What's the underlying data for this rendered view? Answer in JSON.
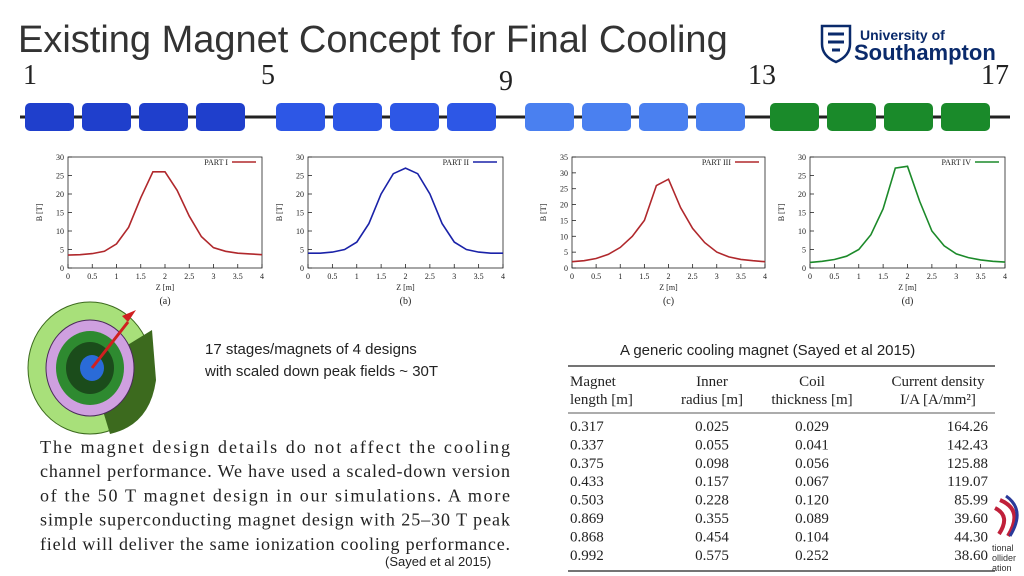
{
  "title": "Existing Magnet Concept for Final Cooling",
  "logo": {
    "line1": "University of",
    "line2": "Southampton"
  },
  "stage_numbers": [
    "1",
    "5",
    "9",
    "13",
    "17"
  ],
  "chart_data": [
    {
      "type": "line",
      "ylabel": "B [T]",
      "xlabel": "Z [m]",
      "caption": "(a)",
      "x": [
        0,
        0.25,
        0.5,
        0.75,
        1,
        1.25,
        1.5,
        1.75,
        2,
        2.25,
        2.5,
        2.75,
        3,
        3.25,
        3.5,
        3.75,
        4
      ],
      "series": [
        {
          "name": "PART I",
          "color": "#b0282c",
          "values": [
            3.5,
            3.6,
            3.9,
            4.5,
            6.5,
            11,
            19,
            26,
            26,
            21,
            14,
            8.5,
            5.5,
            4.5,
            4,
            3.8,
            3.6
          ]
        }
      ],
      "xlim": [
        0,
        4
      ],
      "ylim": [
        0,
        30
      ],
      "xticks": [
        0,
        0.5,
        1,
        1.5,
        2,
        2.5,
        3,
        3.5,
        4
      ],
      "yticks": [
        0,
        5,
        10,
        15,
        20,
        25,
        30
      ],
      "legend": "upper right"
    },
    {
      "type": "line",
      "ylabel": "B [T]",
      "xlabel": "Z [m]",
      "caption": "(b)",
      "x": [
        0,
        0.25,
        0.5,
        0.75,
        1,
        1.25,
        1.5,
        1.75,
        2,
        2.25,
        2.5,
        2.75,
        3,
        3.25,
        3.5,
        3.75,
        4
      ],
      "series": [
        {
          "name": "PART II",
          "color": "#1a22a8",
          "values": [
            4,
            4,
            4.3,
            5,
            7,
            12,
            20,
            25.5,
            27,
            25.5,
            20,
            12,
            7,
            5,
            4.3,
            4,
            4
          ]
        }
      ],
      "xlim": [
        0,
        4
      ],
      "ylim": [
        0,
        30
      ],
      "xticks": [
        0,
        0.5,
        1,
        1.5,
        2,
        2.5,
        3,
        3.5,
        4
      ],
      "yticks": [
        0,
        5,
        10,
        15,
        20,
        25,
        30
      ],
      "legend": "upper right"
    },
    {
      "type": "line",
      "ylabel": "B [T]",
      "xlabel": "Z [m]",
      "caption": "(c)",
      "x": [
        0,
        0.25,
        0.5,
        0.75,
        1,
        1.25,
        1.5,
        1.75,
        2,
        2.25,
        2.5,
        2.75,
        3,
        3.25,
        3.5,
        3.75,
        4
      ],
      "series": [
        {
          "name": "PART III",
          "color": "#b0282c",
          "values": [
            2,
            2.3,
            3,
            4.3,
            6.5,
            10,
            15,
            26,
            28,
            19,
            12.5,
            8,
            5,
            3.5,
            2.7,
            2.3,
            2
          ]
        }
      ],
      "xlim": [
        0,
        4
      ],
      "ylim": [
        0,
        35
      ],
      "xticks": [
        0,
        0.5,
        1,
        1.5,
        2,
        2.5,
        3,
        3.5,
        4
      ],
      "yticks": [
        0,
        5,
        10,
        15,
        20,
        25,
        30,
        35
      ],
      "legend": "upper right"
    },
    {
      "type": "line",
      "ylabel": "B [T]",
      "xlabel": "Z [m]",
      "caption": "(d)",
      "x": [
        0,
        0.25,
        0.5,
        0.75,
        1,
        1.25,
        1.5,
        1.75,
        2,
        2.25,
        2.5,
        2.75,
        3,
        3.25,
        3.5,
        3.75,
        4
      ],
      "series": [
        {
          "name": "PART IV",
          "color": "#1c8a2a",
          "values": [
            1.5,
            1.8,
            2.3,
            3.2,
            5,
            9,
            16,
            27,
            27.5,
            18,
            10,
            6,
            3.8,
            2.8,
            2.2,
            1.8,
            1.6
          ]
        }
      ],
      "xlim": [
        0,
        4
      ],
      "ylim": [
        0,
        30
      ],
      "xticks": [
        0,
        0.5,
        1,
        1.5,
        2,
        2.5,
        3,
        3.5,
        4
      ],
      "yticks": [
        0,
        5,
        10,
        15,
        20,
        25,
        30
      ],
      "legend": "upper right"
    }
  ],
  "note": [
    "17 stages/magnets of 4 designs",
    "with scaled down peak fields ~ 30T"
  ],
  "table": {
    "caption": "A generic cooling magnet (Sayed et al 2015)",
    "header": [
      [
        "Magnet",
        "length [m]"
      ],
      [
        "Inner",
        "radius [m]"
      ],
      [
        "Coil",
        "thickness [m]"
      ],
      [
        "Current density",
        "I/A [A/mm²]"
      ]
    ],
    "rows": [
      [
        "0.317",
        "0.025",
        "0.029",
        "164.26"
      ],
      [
        "0.337",
        "0.055",
        "0.041",
        "142.43"
      ],
      [
        "0.375",
        "0.098",
        "0.056",
        "125.88"
      ],
      [
        "0.433",
        "0.157",
        "0.067",
        "119.07"
      ],
      [
        "0.503",
        "0.228",
        "0.120",
        "85.99"
      ],
      [
        "0.869",
        "0.355",
        "0.089",
        "39.60"
      ],
      [
        "0.868",
        "0.454",
        "0.104",
        "44.30"
      ],
      [
        "0.992",
        "0.575",
        "0.252",
        "38.60"
      ]
    ]
  },
  "quote": [
    "The magnet design details do not affect the cooling",
    "channel performance. We have used a scaled-down version",
    "of the 50 T magnet design in our simulations. A more",
    "simple superconducting magnet design with 25–30 T peak",
    "field will deliver the same ionization cooling performance."
  ],
  "citation": "(Sayed et al  2015)",
  "logo2": [
    "tional",
    "ollider",
    "ation"
  ]
}
